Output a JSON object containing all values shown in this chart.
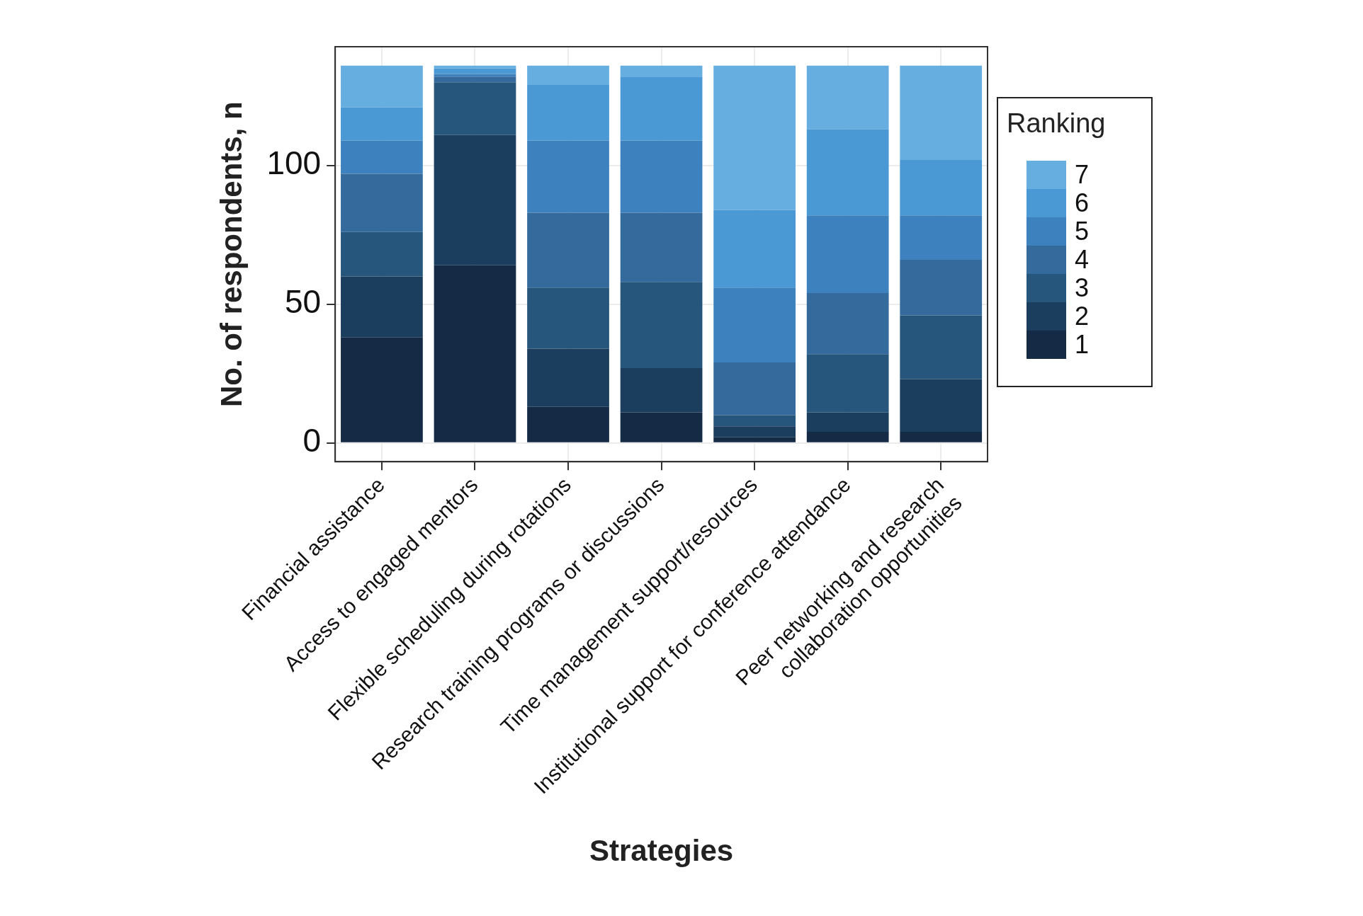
{
  "chart_data": {
    "type": "bar",
    "stacked": true,
    "xlabel": "Strategies",
    "ylabel": "No. of respondents, n",
    "legend_title": "Ranking",
    "legend": "right",
    "grid": true,
    "categories": [
      "Financial assistance",
      "Access to engaged mentors",
      "Flexible scheduling during rotations",
      "Research training programs or discussions",
      "Time management support/resources",
      "Institutional support for conference attendance",
      "Peer networking and research\ncollaboration opportunities"
    ],
    "ylim": [
      -6.8,
      142.8
    ],
    "yticks": [
      0,
      50,
      100
    ],
    "series": [
      {
        "name": "1",
        "color": "#152a45",
        "values": [
          38,
          64,
          13,
          11,
          2,
          4,
          4
        ]
      },
      {
        "name": "2",
        "color": "#1b3d5e",
        "values": [
          22,
          47,
          21,
          16,
          4,
          7,
          19
        ]
      },
      {
        "name": "3",
        "color": "#27567c",
        "values": [
          16,
          19,
          22,
          31,
          4,
          21,
          23
        ]
      },
      {
        "name": "4",
        "color": "#356b9c",
        "values": [
          21,
          2,
          27,
          25,
          19,
          22,
          20
        ]
      },
      {
        "name": "5",
        "color": "#3d82be",
        "values": [
          12,
          1,
          26,
          26,
          27,
          28,
          16
        ]
      },
      {
        "name": "6",
        "color": "#4a98d4",
        "values": [
          12,
          2,
          20,
          23,
          28,
          31,
          20
        ]
      },
      {
        "name": "7",
        "color": "#66ade0",
        "values": [
          15,
          1,
          7,
          4,
          52,
          23,
          34
        ]
      }
    ]
  }
}
